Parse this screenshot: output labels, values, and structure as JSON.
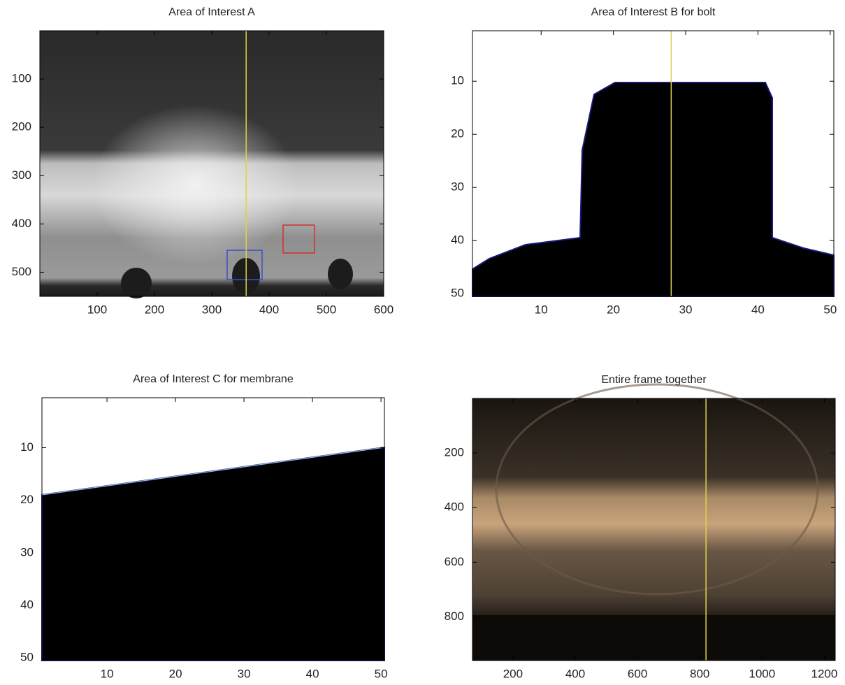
{
  "chart_data": [
    {
      "type": "image",
      "title": "Area of Interest A",
      "xlim": [
        0,
        600
      ],
      "ylim": [
        0,
        550
      ],
      "xticks": [
        100,
        200,
        300,
        400,
        500,
        600
      ],
      "yticks": [
        100,
        200,
        300,
        400,
        500
      ],
      "marker_x": 360,
      "marker_color": "#e0d24a"
    },
    {
      "type": "image",
      "title": "Area of Interest B for bolt",
      "xlim": [
        0.5,
        50.5
      ],
      "ylim": [
        0.5,
        50.5
      ],
      "xticks": [
        10,
        20,
        30,
        40,
        50
      ],
      "yticks": [
        10,
        20,
        30,
        40,
        50
      ],
      "marker_x": 28,
      "marker_color": "#e0d24a"
    },
    {
      "type": "image",
      "title": "Area of Interest C for membrane",
      "xlim": [
        0.5,
        50.5
      ],
      "ylim": [
        0.5,
        50.5
      ],
      "xticks": [
        10,
        20,
        30,
        40,
        50
      ],
      "yticks": [
        10,
        20,
        30,
        40,
        50
      ]
    },
    {
      "type": "image",
      "title": "Entire frame together",
      "xlim": [
        70,
        1235
      ],
      "ylim": [
        0,
        960
      ],
      "xticks": [
        200,
        400,
        600,
        800,
        1000,
        1200
      ],
      "yticks": [
        200,
        400,
        600,
        800
      ],
      "marker_x": 820,
      "marker_color": "#e0d24a"
    }
  ]
}
